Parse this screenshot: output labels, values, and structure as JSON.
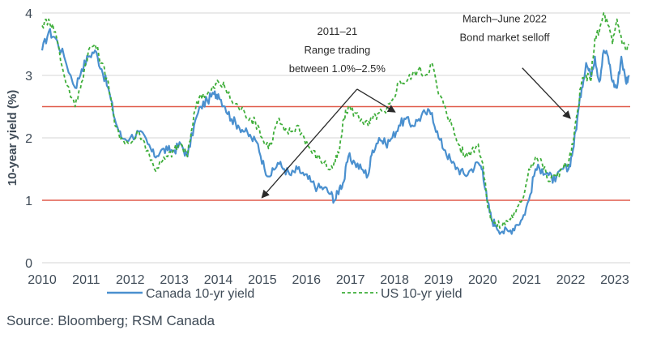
{
  "source_note": "Source: Bloomberg; RSM Canada",
  "chart_data": {
    "type": "line",
    "ylabel": "10-year yield (%)",
    "xlabel": "",
    "ylim": [
      0,
      4
    ],
    "xlim": [
      2010.0,
      2023.35
    ],
    "y_ticks": [
      "0",
      "1",
      "2",
      "3",
      "4"
    ],
    "x_ticks": [
      {
        "label": "2010",
        "x": 2010.0
      },
      {
        "label": "2011",
        "x": 2011.0
      },
      {
        "label": "2012",
        "x": 2012.0
      },
      {
        "label": "2013",
        "x": 2013.0
      },
      {
        "label": "2014",
        "x": 2014.0
      },
      {
        "label": "2015",
        "x": 2015.0
      },
      {
        "label": "2016",
        "x": 2016.0
      },
      {
        "label": "2017",
        "x": 2017.0
      },
      {
        "label": "2018",
        "x": 2018.0
      },
      {
        "label": "2019",
        "x": 2019.0
      },
      {
        "label": "2020",
        "x": 2020.0
      },
      {
        "label": "2021",
        "x": 2021.0
      },
      {
        "label": "2022",
        "x": 2022.0
      },
      {
        "label": "2023",
        "x": 2023.0
      }
    ],
    "grid": "horizontal",
    "legend_position": "bottom",
    "colors": {
      "canada": "#4a90cf",
      "us": "#3fae3a",
      "reference_lines": "#e05a4a",
      "grid": "#d4d4d4",
      "annotation": "#2a2a2a",
      "text": "#3f4b57"
    },
    "series": [
      {
        "name": "Canada 10-yr yield",
        "style": "solid",
        "x": [
          2010.0,
          2010.15,
          2010.3,
          2010.5,
          2010.75,
          2010.9,
          2011.05,
          2011.2,
          2011.35,
          2011.5,
          2011.65,
          2011.8,
          2012.0,
          2012.2,
          2012.4,
          2012.55,
          2012.7,
          2012.85,
          2013.0,
          2013.15,
          2013.3,
          2013.45,
          2013.6,
          2013.75,
          2013.9,
          2014.0,
          2014.15,
          2014.3,
          2014.45,
          2014.6,
          2014.75,
          2014.9,
          2015.05,
          2015.2,
          2015.35,
          2015.5,
          2015.65,
          2015.8,
          2015.95,
          2016.1,
          2016.25,
          2016.4,
          2016.55,
          2016.65,
          2016.75,
          2016.85,
          2016.95,
          2017.1,
          2017.25,
          2017.4,
          2017.5,
          2017.65,
          2017.8,
          2017.95,
          2018.1,
          2018.25,
          2018.4,
          2018.55,
          2018.7,
          2018.85,
          2019.0,
          2019.15,
          2019.3,
          2019.45,
          2019.6,
          2019.75,
          2019.9,
          2020.0,
          2020.1,
          2020.2,
          2020.3,
          2020.45,
          2020.6,
          2020.75,
          2020.9,
          2021.05,
          2021.2,
          2021.35,
          2021.5,
          2021.65,
          2021.8,
          2021.95,
          2022.05,
          2022.15,
          2022.25,
          2022.35,
          2022.45,
          2022.55,
          2022.65,
          2022.75,
          2022.85,
          2022.95,
          2023.05,
          2023.15,
          2023.25,
          2023.32
        ],
        "values": [
          3.4,
          3.7,
          3.6,
          3.3,
          2.8,
          3.1,
          3.3,
          3.4,
          3.1,
          2.8,
          2.3,
          2.0,
          2.0,
          2.1,
          1.9,
          1.7,
          1.8,
          1.8,
          1.8,
          1.9,
          1.7,
          2.2,
          2.5,
          2.6,
          2.7,
          2.7,
          2.5,
          2.3,
          2.2,
          2.1,
          2.0,
          1.9,
          1.5,
          1.4,
          1.6,
          1.5,
          1.4,
          1.5,
          1.4,
          1.3,
          1.2,
          1.2,
          1.1,
          1.0,
          1.2,
          1.3,
          1.7,
          1.6,
          1.5,
          1.4,
          1.8,
          2.0,
          1.9,
          2.0,
          2.2,
          2.3,
          2.2,
          2.3,
          2.4,
          2.4,
          2.0,
          1.8,
          1.6,
          1.5,
          1.4,
          1.5,
          1.6,
          1.5,
          1.0,
          0.7,
          0.6,
          0.5,
          0.5,
          0.6,
          0.7,
          1.0,
          1.5,
          1.5,
          1.4,
          1.3,
          1.5,
          1.5,
          1.8,
          2.3,
          2.8,
          3.2,
          3.0,
          3.3,
          2.9,
          3.4,
          3.3,
          2.9,
          2.8,
          3.3,
          2.9,
          3.0
        ]
      },
      {
        "name": "US 10-yr yield",
        "style": "dashed",
        "x": [
          2010.0,
          2010.15,
          2010.3,
          2010.5,
          2010.75,
          2010.9,
          2011.05,
          2011.2,
          2011.35,
          2011.5,
          2011.65,
          2011.8,
          2012.0,
          2012.2,
          2012.4,
          2012.55,
          2012.7,
          2012.85,
          2013.0,
          2013.15,
          2013.3,
          2013.45,
          2013.6,
          2013.75,
          2013.9,
          2014.0,
          2014.15,
          2014.3,
          2014.45,
          2014.6,
          2014.75,
          2014.9,
          2015.05,
          2015.2,
          2015.35,
          2015.5,
          2015.65,
          2015.8,
          2015.95,
          2016.1,
          2016.25,
          2016.4,
          2016.55,
          2016.65,
          2016.75,
          2016.85,
          2016.95,
          2017.1,
          2017.25,
          2017.4,
          2017.5,
          2017.65,
          2017.8,
          2017.95,
          2018.1,
          2018.25,
          2018.4,
          2018.55,
          2018.7,
          2018.85,
          2019.0,
          2019.15,
          2019.3,
          2019.45,
          2019.6,
          2019.75,
          2019.9,
          2020.0,
          2020.1,
          2020.2,
          2020.3,
          2020.45,
          2020.6,
          2020.75,
          2020.9,
          2021.05,
          2021.2,
          2021.35,
          2021.5,
          2021.65,
          2021.8,
          2021.95,
          2022.05,
          2022.15,
          2022.25,
          2022.35,
          2022.45,
          2022.55,
          2022.65,
          2022.75,
          2022.85,
          2022.95,
          2023.05,
          2023.15,
          2023.25,
          2023.32
        ],
        "values": [
          3.8,
          3.9,
          3.7,
          3.0,
          2.5,
          2.9,
          3.4,
          3.5,
          3.2,
          2.9,
          2.2,
          2.0,
          1.9,
          2.1,
          1.8,
          1.5,
          1.6,
          1.7,
          1.8,
          1.9,
          1.7,
          2.4,
          2.7,
          2.7,
          2.8,
          2.9,
          2.8,
          2.6,
          2.5,
          2.4,
          2.3,
          2.2,
          1.9,
          1.9,
          2.3,
          2.1,
          2.1,
          2.2,
          2.0,
          1.8,
          1.7,
          1.6,
          1.5,
          1.6,
          1.8,
          2.3,
          2.5,
          2.4,
          2.3,
          2.2,
          2.3,
          2.4,
          2.4,
          2.6,
          2.9,
          2.9,
          3.0,
          3.1,
          3.0,
          3.2,
          2.7,
          2.5,
          2.2,
          1.9,
          1.7,
          1.8,
          1.9,
          1.6,
          1.0,
          0.7,
          0.6,
          0.6,
          0.7,
          0.8,
          1.0,
          1.5,
          1.7,
          1.6,
          1.3,
          1.4,
          1.5,
          1.6,
          1.9,
          2.4,
          2.9,
          3.0,
          2.9,
          3.6,
          3.7,
          4.0,
          3.8,
          3.5,
          3.9,
          3.6,
          3.4,
          3.5
        ]
      }
    ],
    "reference_lines": [
      {
        "y": 1.0
      },
      {
        "y": 2.5
      }
    ],
    "annotations": [
      {
        "id": "range",
        "lines": [
          "2011–21",
          "Range trading",
          "between 1.0%–2.5%"
        ],
        "anchor_x": 2016.7,
        "anchor_y": 3.05,
        "arrows": [
          {
            "from": [
              2017.15,
              2.78
            ],
            "to": [
              2015.0,
              1.05
            ]
          },
          {
            "from": [
              2017.15,
              2.78
            ],
            "to": [
              2018.0,
              2.42
            ]
          }
        ]
      },
      {
        "id": "selloff",
        "lines": [
          "March–June 2022",
          "Bond market selloff"
        ],
        "anchor_x": 2020.5,
        "anchor_y": 3.55,
        "arrows": [
          {
            "from": [
              2020.9,
              3.12
            ],
            "to": [
              2021.98,
              2.32
            ]
          }
        ]
      }
    ]
  }
}
